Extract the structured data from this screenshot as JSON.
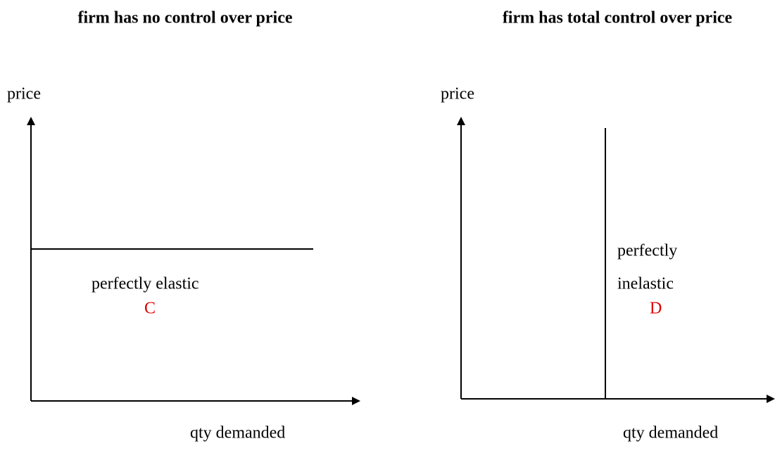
{
  "panels": [
    {
      "title": "firm has no control over price",
      "y_label": "price",
      "x_label": "qty demanded",
      "curve_label": [
        "perfectly elastic"
      ],
      "letter": "C"
    },
    {
      "title": "firm has total control over price",
      "y_label": "price",
      "x_label": "qty demanded",
      "curve_label": [
        "perfectly",
        "inelastic"
      ],
      "letter": "D"
    }
  ]
}
